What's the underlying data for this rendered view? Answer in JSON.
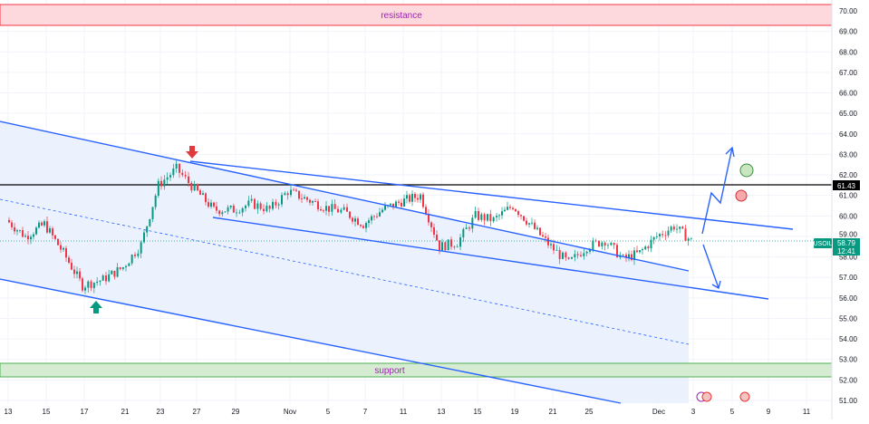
{
  "chart_data": {
    "type": "candlestick",
    "symbol": "USOIL",
    "last_price": "58.79",
    "countdown": "12:41",
    "key_level": "61.43",
    "ylim": [
      51.0,
      70.0
    ],
    "y_ticks": [
      "70.00",
      "69.00",
      "68.00",
      "67.00",
      "66.00",
      "65.00",
      "64.00",
      "63.00",
      "62.00",
      "61.00",
      "60.00",
      "59.00",
      "58.00",
      "57.00",
      "56.00",
      "55.00",
      "54.00",
      "53.00",
      "52.00",
      "51.00"
    ],
    "x_ticks": [
      "13",
      "15",
      "17",
      "21",
      "23",
      "27",
      "29",
      "Nov",
      "5",
      "7",
      "11",
      "13",
      "15",
      "19",
      "21",
      "25",
      "Dec",
      "3",
      "5",
      "9",
      "11"
    ],
    "price_path": [
      [
        "Oct 13",
        59.8
      ],
      [
        "Oct 14",
        59.0
      ],
      [
        "Oct 15",
        59.6
      ],
      [
        "Oct 16",
        58.2
      ],
      [
        "Oct 17",
        56.6
      ],
      [
        "Oct 20",
        56.9
      ],
      [
        "Oct 21",
        57.5
      ],
      [
        "Oct 22",
        58.6
      ],
      [
        "Oct 23",
        61.5
      ],
      [
        "Oct 24",
        62.3
      ],
      [
        "Oct 27",
        61.3
      ],
      [
        "Oct 28",
        60.3
      ],
      [
        "Oct 29",
        60.3
      ],
      [
        "Oct 30",
        60.6
      ],
      [
        "Oct 31",
        60.3
      ],
      [
        "Nov 3",
        61.2
      ],
      [
        "Nov 4",
        60.8
      ],
      [
        "Nov 5",
        60.4
      ],
      [
        "Nov 6",
        60.2
      ],
      [
        "Nov 7",
        59.6
      ],
      [
        "Nov 10",
        60.3
      ],
      [
        "Nov 11",
        60.7
      ],
      [
        "Nov 12",
        61.0
      ],
      [
        "Nov 13",
        58.5
      ],
      [
        "Nov 14",
        58.7
      ],
      [
        "Nov 17",
        60.0
      ],
      [
        "Nov 18",
        59.8
      ],
      [
        "Nov 19",
        60.5
      ],
      [
        "Nov 20",
        59.5
      ],
      [
        "Nov 21",
        58.5
      ],
      [
        "Nov 24",
        57.7
      ],
      [
        "Nov 25",
        58.5
      ],
      [
        "Nov 26",
        58.8
      ],
      [
        "Nov 27",
        57.9
      ],
      [
        "Nov 28",
        58.2
      ],
      [
        "Dec 1",
        59.0
      ],
      [
        "Dec 2",
        59.5
      ],
      [
        "Dec 3",
        58.79
      ]
    ],
    "zones": {
      "resistance": "resistance",
      "support": "support"
    },
    "colors": {
      "up": "#089981",
      "down": "#f23645",
      "drawing": "#2962ff",
      "channel_fill": "#e8f0fe",
      "resistance": "#f23645",
      "support": "#4caf50",
      "label": "#9c27b0"
    }
  }
}
